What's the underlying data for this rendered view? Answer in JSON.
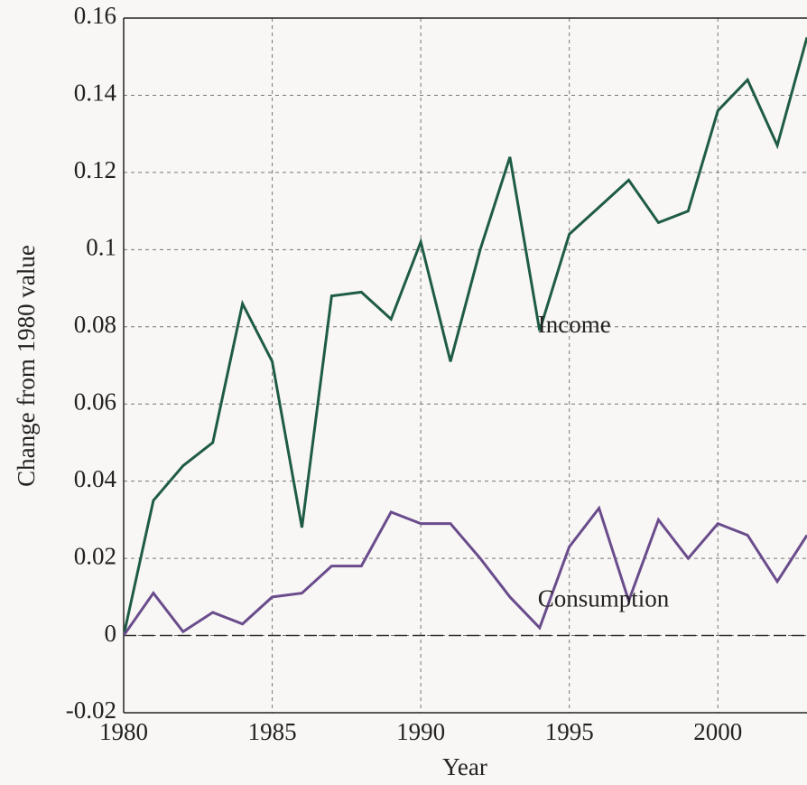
{
  "chart_data": {
    "type": "line",
    "x_label": "Year",
    "y_label": "Change from 1980 value",
    "x": [
      1980,
      1981,
      1982,
      1983,
      1984,
      1985,
      1986,
      1987,
      1988,
      1989,
      1990,
      1991,
      1992,
      1993,
      1994,
      1995,
      1996,
      1997,
      1998,
      1999,
      2000,
      2001,
      2002,
      2003
    ],
    "series": [
      {
        "name": "Income",
        "color": "#1f5c45",
        "values": [
          0,
          0.035,
          0.044,
          0.05,
          0.086,
          0.071,
          0.028,
          0.088,
          0.089,
          0.082,
          0.102,
          0.071,
          0.1,
          0.124,
          0.079,
          0.104,
          0.111,
          0.118,
          0.107,
          0.11,
          0.136,
          0.144,
          0.127,
          0.155
        ]
      },
      {
        "name": "Consumption",
        "color": "#6a4c8c",
        "values": [
          0,
          0.011,
          0.001,
          0.006,
          0.003,
          0.01,
          0.011,
          0.018,
          0.018,
          0.032,
          0.029,
          0.029,
          0.02,
          0.01,
          0.002,
          0.023,
          0.033,
          0.009,
          0.03,
          0.02,
          0.029,
          0.026,
          0.014,
          0.026
        ]
      }
    ],
    "annotations": [
      {
        "text": "Income",
        "x": 1994,
        "y": 0.08
      },
      {
        "text": "Consumption",
        "x": 1994,
        "y": 0.009
      }
    ],
    "xlim": [
      1980,
      2003
    ],
    "xticks": [
      1980,
      1985,
      1990,
      1995,
      2000
    ],
    "ylim": [
      -0.02,
      0.16
    ],
    "yticks": [
      -0.02,
      0,
      0.02,
      0.04,
      0.06,
      0.08,
      0.1,
      0.12,
      0.14,
      0.16
    ],
    "hline": 0,
    "grid": true
  }
}
